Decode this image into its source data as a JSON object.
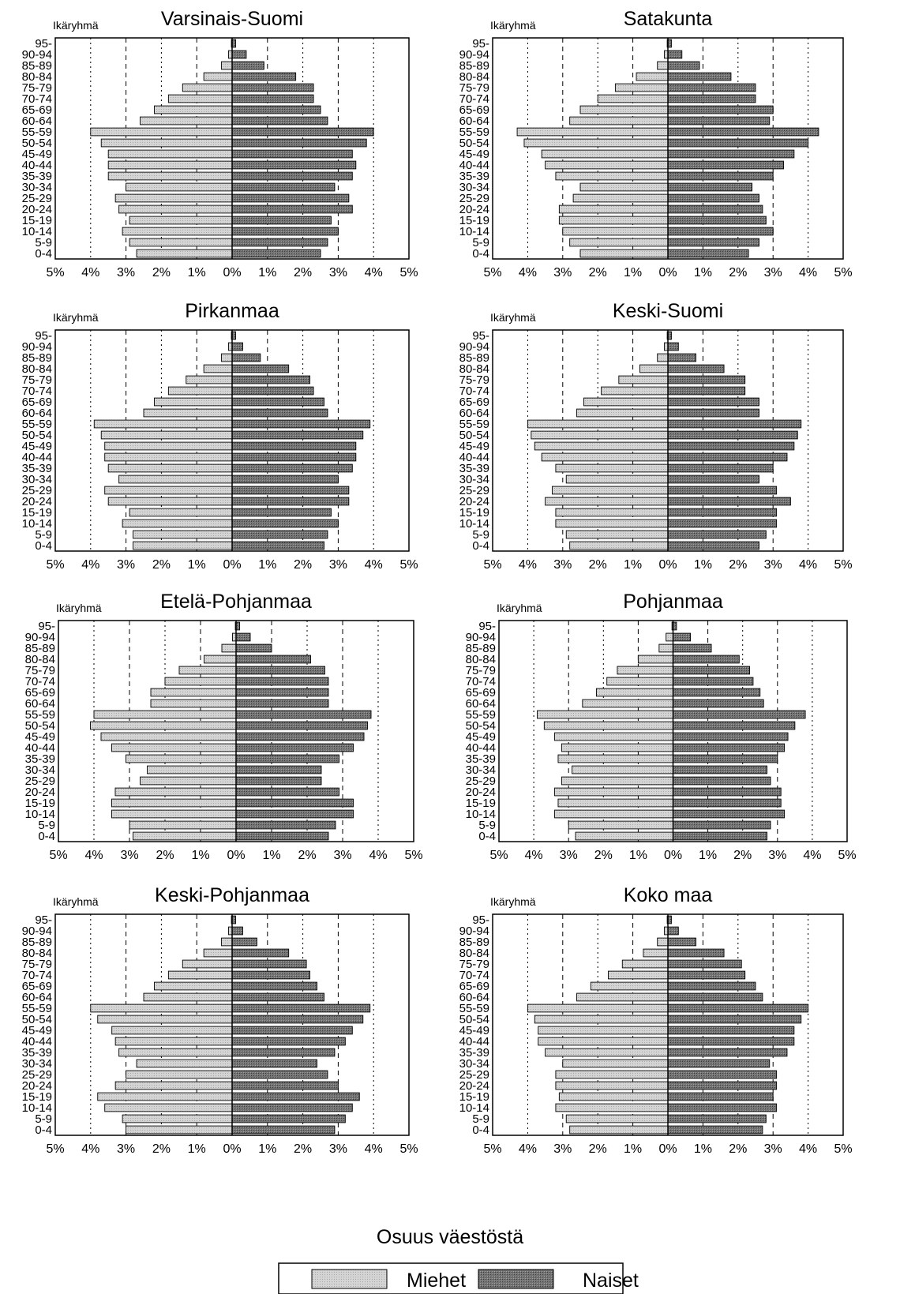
{
  "footer": {
    "caption": "Osuus väestöstä",
    "legend_men": "Miehet",
    "legend_women": "Naiset"
  },
  "colors": {
    "men": "#d4d4d4",
    "women": "#6e6e6e",
    "frame": "#000000"
  },
  "chart_data": [
    {
      "type": "bar",
      "title": "Varsinais-Suomi",
      "ylabel": "Ikäryhmä",
      "xlabel": "",
      "categories": [
        "0-4",
        "5-9",
        "10-14",
        "15-19",
        "20-24",
        "25-29",
        "30-34",
        "35-39",
        "40-44",
        "45-49",
        "50-54",
        "55-59",
        "60-64",
        "65-69",
        "70-74",
        "75-79",
        "80-84",
        "85-89",
        "90-94",
        "95-"
      ],
      "x_ticks": [
        "5%",
        "4%",
        "3%",
        "2%",
        "1%",
        "0%",
        "1%",
        "2%",
        "3%",
        "4%",
        "5%"
      ],
      "xlim": [
        -5,
        5
      ],
      "grid": true,
      "series": [
        {
          "name": "Miehet",
          "values": [
            2.7,
            2.9,
            3.1,
            2.9,
            3.2,
            3.3,
            3.0,
            3.5,
            3.5,
            3.5,
            3.7,
            4.0,
            2.6,
            2.2,
            1.8,
            1.4,
            0.8,
            0.3,
            0.1,
            0.02
          ]
        },
        {
          "name": "Naiset",
          "values": [
            2.5,
            2.7,
            3.0,
            2.8,
            3.4,
            3.3,
            2.9,
            3.4,
            3.5,
            3.4,
            3.8,
            4.0,
            2.7,
            2.5,
            2.3,
            2.3,
            1.8,
            0.9,
            0.4,
            0.1
          ]
        }
      ]
    },
    {
      "type": "bar",
      "title": "Satakunta",
      "ylabel": "Ikäryhmä",
      "xlabel": "",
      "categories": [
        "0-4",
        "5-9",
        "10-14",
        "15-19",
        "20-24",
        "25-29",
        "30-34",
        "35-39",
        "40-44",
        "45-49",
        "50-54",
        "55-59",
        "60-64",
        "65-69",
        "70-74",
        "75-79",
        "80-84",
        "85-89",
        "90-94",
        "95-"
      ],
      "x_ticks": [
        "5%",
        "4%",
        "3%",
        "2%",
        "1%",
        "0%",
        "1%",
        "2%",
        "3%",
        "4%",
        "5%"
      ],
      "xlim": [
        -5,
        5
      ],
      "grid": true,
      "series": [
        {
          "name": "Miehet",
          "values": [
            2.5,
            2.8,
            3.0,
            3.1,
            3.1,
            2.7,
            2.5,
            3.2,
            3.5,
            3.6,
            4.1,
            4.3,
            2.8,
            2.5,
            2.0,
            1.5,
            0.9,
            0.3,
            0.1,
            0.02
          ]
        },
        {
          "name": "Naiset",
          "values": [
            2.3,
            2.6,
            3.0,
            2.8,
            2.7,
            2.6,
            2.4,
            3.0,
            3.3,
            3.6,
            4.0,
            4.3,
            2.9,
            3.0,
            2.5,
            2.5,
            1.8,
            0.9,
            0.4,
            0.1
          ]
        }
      ]
    },
    {
      "type": "bar",
      "title": "Pirkanmaa",
      "ylabel": "Ikäryhmä",
      "xlabel": "",
      "categories": [
        "0-4",
        "5-9",
        "10-14",
        "15-19",
        "20-24",
        "25-29",
        "30-34",
        "35-39",
        "40-44",
        "45-49",
        "50-54",
        "55-59",
        "60-64",
        "65-69",
        "70-74",
        "75-79",
        "80-84",
        "85-89",
        "90-94",
        "95-"
      ],
      "x_ticks": [
        "5%",
        "4%",
        "3%",
        "2%",
        "1%",
        "0%",
        "1%",
        "2%",
        "3%",
        "4%",
        "5%"
      ],
      "xlim": [
        -5,
        5
      ],
      "grid": true,
      "series": [
        {
          "name": "Miehet",
          "values": [
            2.8,
            2.8,
            3.1,
            2.9,
            3.5,
            3.6,
            3.2,
            3.5,
            3.6,
            3.6,
            3.7,
            3.9,
            2.5,
            2.2,
            1.8,
            1.3,
            0.8,
            0.3,
            0.1,
            0.02
          ]
        },
        {
          "name": "Naiset",
          "values": [
            2.6,
            2.7,
            3.0,
            2.8,
            3.3,
            3.3,
            3.0,
            3.4,
            3.5,
            3.5,
            3.7,
            3.9,
            2.7,
            2.6,
            2.3,
            2.2,
            1.6,
            0.8,
            0.3,
            0.1
          ]
        }
      ]
    },
    {
      "type": "bar",
      "title": "Keski-Suomi",
      "ylabel": "Ikäryhmä",
      "xlabel": "",
      "categories": [
        "0-4",
        "5-9",
        "10-14",
        "15-19",
        "20-24",
        "25-29",
        "30-34",
        "35-39",
        "40-44",
        "45-49",
        "50-54",
        "55-59",
        "60-64",
        "65-69",
        "70-74",
        "75-79",
        "80-84",
        "85-89",
        "90-94",
        "95-"
      ],
      "x_ticks": [
        "5%",
        "4%",
        "3%",
        "2%",
        "1%",
        "0%",
        "1%",
        "2%",
        "3%",
        "4%",
        "5%"
      ],
      "xlim": [
        -5,
        5
      ],
      "grid": true,
      "series": [
        {
          "name": "Miehet",
          "values": [
            2.8,
            2.9,
            3.2,
            3.2,
            3.5,
            3.3,
            2.9,
            3.2,
            3.6,
            3.8,
            3.9,
            4.0,
            2.6,
            2.4,
            1.9,
            1.4,
            0.8,
            0.3,
            0.1,
            0.02
          ]
        },
        {
          "name": "Naiset",
          "values": [
            2.6,
            2.8,
            3.1,
            3.1,
            3.5,
            3.1,
            2.6,
            3.0,
            3.4,
            3.6,
            3.7,
            3.8,
            2.6,
            2.6,
            2.2,
            2.2,
            1.6,
            0.8,
            0.3,
            0.1
          ]
        }
      ]
    },
    {
      "type": "bar",
      "title": "Etelä-Pohjanmaa",
      "ylabel": "Ikäryhmä",
      "xlabel": "",
      "categories": [
        "0-4",
        "5-9",
        "10-14",
        "15-19",
        "20-24",
        "25-29",
        "30-34",
        "35-39",
        "40-44",
        "45-49",
        "50-54",
        "55-59",
        "60-64",
        "65-69",
        "70-74",
        "75-79",
        "80-84",
        "85-89",
        "90-94",
        "95-"
      ],
      "x_ticks": [
        "5%",
        "4%",
        "3%",
        "2%",
        "1%",
        "0%",
        "1%",
        "2%",
        "3%",
        "4%",
        "5%"
      ],
      "xlim": [
        -5,
        5
      ],
      "grid": true,
      "series": [
        {
          "name": "Miehet",
          "values": [
            2.9,
            3.0,
            3.5,
            3.5,
            3.4,
            2.7,
            2.5,
            3.1,
            3.5,
            3.8,
            4.1,
            4.0,
            2.4,
            2.4,
            2.0,
            1.6,
            0.9,
            0.4,
            0.1,
            0.02
          ]
        },
        {
          "name": "Naiset",
          "values": [
            2.6,
            2.8,
            3.3,
            3.3,
            2.9,
            2.4,
            2.4,
            2.9,
            3.3,
            3.6,
            3.7,
            3.8,
            2.6,
            2.6,
            2.6,
            2.5,
            2.1,
            1.0,
            0.4,
            0.1
          ]
        }
      ]
    },
    {
      "type": "bar",
      "title": "Pohjanmaa",
      "ylabel": "Ikäryhmä",
      "xlabel": "",
      "categories": [
        "0-4",
        "5-9",
        "10-14",
        "15-19",
        "20-24",
        "25-29",
        "30-34",
        "35-39",
        "40-44",
        "45-49",
        "50-54",
        "55-59",
        "60-64",
        "65-69",
        "70-74",
        "75-79",
        "80-84",
        "85-89",
        "90-94",
        "95-"
      ],
      "x_ticks": [
        "5%",
        "4%",
        "3%",
        "2%",
        "1%",
        "0%",
        "1%",
        "2%",
        "3%",
        "4%",
        "5%"
      ],
      "xlim": [
        -5,
        5
      ],
      "grid": true,
      "series": [
        {
          "name": "Miehet",
          "values": [
            2.8,
            3.0,
            3.4,
            3.3,
            3.4,
            3.2,
            2.9,
            3.3,
            3.2,
            3.4,
            3.7,
            3.9,
            2.6,
            2.2,
            1.9,
            1.6,
            1.0,
            0.4,
            0.2,
            0.03
          ]
        },
        {
          "name": "Naiset",
          "values": [
            2.7,
            2.8,
            3.2,
            3.1,
            3.1,
            2.8,
            2.7,
            3.0,
            3.2,
            3.3,
            3.5,
            3.8,
            2.6,
            2.5,
            2.3,
            2.2,
            1.9,
            1.1,
            0.5,
            0.1
          ]
        }
      ]
    },
    {
      "type": "bar",
      "title": "Keski-Pohjanmaa",
      "ylabel": "Ikäryhmä",
      "xlabel": "",
      "categories": [
        "0-4",
        "5-9",
        "10-14",
        "15-19",
        "20-24",
        "25-29",
        "30-34",
        "35-39",
        "40-44",
        "45-49",
        "50-54",
        "55-59",
        "60-64",
        "65-69",
        "70-74",
        "75-79",
        "80-84",
        "85-89",
        "90-94",
        "95-"
      ],
      "x_ticks": [
        "5%",
        "4%",
        "3%",
        "2%",
        "1%",
        "0%",
        "1%",
        "2%",
        "3%",
        "4%",
        "5%"
      ],
      "xlim": [
        -5,
        5
      ],
      "grid": true,
      "series": [
        {
          "name": "Miehet",
          "values": [
            3.0,
            3.1,
            3.6,
            3.8,
            3.3,
            3.0,
            2.7,
            3.2,
            3.3,
            3.4,
            3.8,
            4.0,
            2.5,
            2.2,
            1.8,
            1.4,
            0.8,
            0.3,
            0.1,
            0.02
          ]
        },
        {
          "name": "Naiset",
          "values": [
            2.9,
            3.2,
            3.4,
            3.6,
            3.0,
            2.7,
            2.4,
            2.9,
            3.2,
            3.4,
            3.7,
            3.9,
            2.6,
            2.4,
            2.2,
            2.1,
            1.6,
            0.7,
            0.3,
            0.1
          ]
        }
      ]
    },
    {
      "type": "bar",
      "title": "Koko maa",
      "ylabel": "Ikäryhmä",
      "xlabel": "",
      "categories": [
        "0-4",
        "5-9",
        "10-14",
        "15-19",
        "20-24",
        "25-29",
        "30-34",
        "35-39",
        "40-44",
        "45-49",
        "50-54",
        "55-59",
        "60-64",
        "65-69",
        "70-74",
        "75-79",
        "80-84",
        "85-89",
        "90-94",
        "95-"
      ],
      "x_ticks": [
        "5%",
        "4%",
        "3%",
        "2%",
        "1%",
        "0%",
        "1%",
        "2%",
        "3%",
        "4%",
        "5%"
      ],
      "xlim": [
        -5,
        5
      ],
      "grid": true,
      "series": [
        {
          "name": "Miehet",
          "values": [
            2.8,
            2.9,
            3.2,
            3.1,
            3.2,
            3.2,
            3.0,
            3.5,
            3.7,
            3.7,
            3.8,
            4.0,
            2.6,
            2.2,
            1.7,
            1.3,
            0.7,
            0.3,
            0.1,
            0.02
          ]
        },
        {
          "name": "Naiset",
          "values": [
            2.7,
            2.8,
            3.1,
            3.0,
            3.1,
            3.1,
            2.9,
            3.4,
            3.6,
            3.6,
            3.8,
            4.0,
            2.7,
            2.5,
            2.2,
            2.1,
            1.6,
            0.8,
            0.3,
            0.1
          ]
        }
      ]
    }
  ]
}
